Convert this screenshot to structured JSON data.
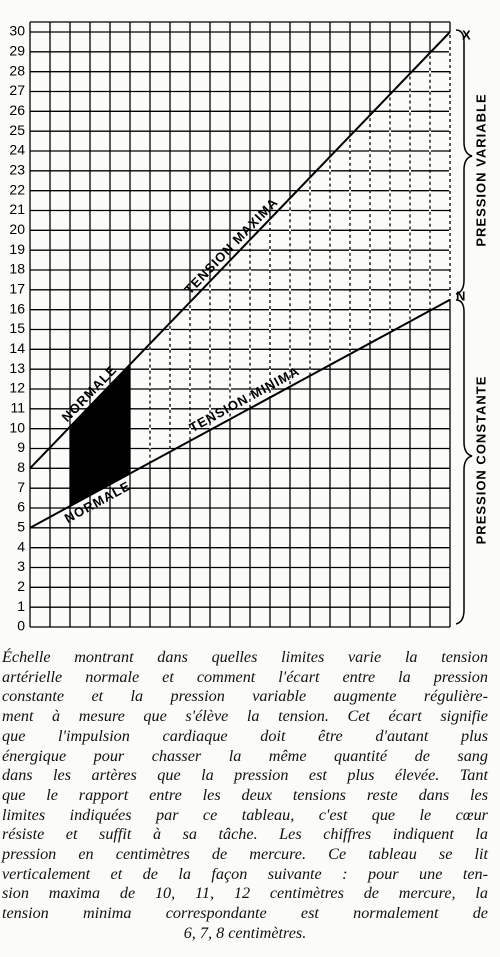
{
  "chart_data": {
    "type": "line",
    "categories": [
      null,
      null
    ],
    "series": [
      {
        "name": "TENSION MAXIMA",
        "color": "#000000",
        "values": [
          8,
          30
        ]
      },
      {
        "name": "TENSION MINIMA",
        "color": "#000000",
        "values": [
          5,
          16.5
        ]
      }
    ],
    "ylim": [
      0,
      30
    ],
    "yticks": [
      0,
      1,
      2,
      3,
      4,
      5,
      6,
      7,
      8,
      9,
      10,
      11,
      12,
      13,
      14,
      15,
      16,
      17,
      18,
      19,
      20,
      21,
      22,
      23,
      24,
      25,
      26,
      27,
      28,
      29,
      30
    ],
    "grid": true,
    "annotations": [
      "NORMALE",
      "NORMALE",
      "X",
      "N",
      "PRESSION VARIABLE",
      "PRESSION CONSTANTE"
    ]
  },
  "caption": [
    "Échelle montrant dans quelles limites varie la tension",
    "artérielle normale et comment l'écart entre la pression",
    "constante et la pression variable augmente régulière-",
    "ment à mesure que s'élève la tension. Cet écart signifie",
    "que l'impulsion cardiaque doit être d'autant plus",
    "énergique pour chasser la même quantité de sang",
    "dans les artères que la pression est plus élevée. Tant",
    "que le rapport entre les deux tensions reste dans les",
    "limites indiquées par ce tableau, c'est que le cœur",
    "résiste et suffit à sa tâche. Les chiffres indiquent la",
    "pression en centimètres de mercure. Ce tableau se lit",
    "verticalement et de la façon suivante : pour une ten-",
    "sion maxima de 10, 11, 12 centimètres de mercure, la",
    "tension minima correspondante est normalement de",
    "6, 7, 8 centimètres."
  ]
}
